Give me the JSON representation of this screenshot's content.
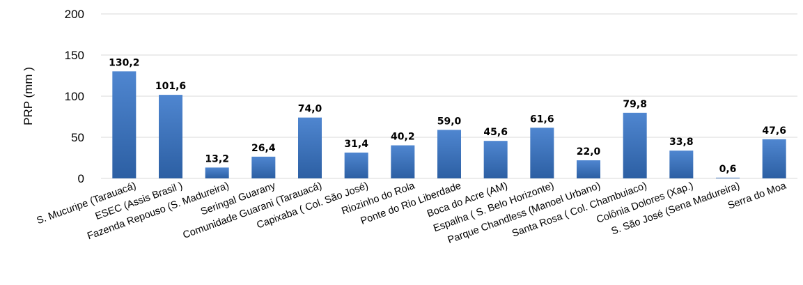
{
  "chart_data": {
    "type": "bar",
    "title": "",
    "xlabel": "",
    "ylabel": "PRP (mm )",
    "ylim": [
      0,
      200
    ],
    "yticks": [
      0,
      50,
      100,
      150,
      200
    ],
    "grid": true,
    "legend": "none",
    "bar_color_top": "#4f86d0",
    "bar_color_bottom": "#2c5fa3",
    "grid_color": "#d9d9d9",
    "categories": [
      "S. Mucuripe (Tarauacá)",
      "ESEC (Assis Brasil )",
      "Fazenda Repouso (S. Madureira)",
      "Seringal Guarany",
      "Comunidade Guarani (Tarauacá)",
      "Capixaba ( Col. São José)",
      "Riozinho do Rola",
      "Ponte do Rio Liberdade",
      "Boca do Acre (AM)",
      "Espalha ( S. Belo Horizonte)",
      "Parque Chandless (Manoel Urbano)",
      "Santa Rosa ( Col. Chambuiaco)",
      "Colônia Dolores (Xap.)",
      "S. São José (Sena Madureira)",
      "Serra do Moa"
    ],
    "values": [
      130.2,
      101.6,
      13.2,
      26.4,
      74.0,
      31.4,
      40.2,
      59.0,
      45.6,
      61.6,
      22.0,
      79.8,
      33.8,
      0.6,
      47.6
    ],
    "value_labels": [
      "130,2",
      "101,6",
      "13,2",
      "26,4",
      "74,0",
      "31,4",
      "40,2",
      "59,0",
      "45,6",
      "61,6",
      "22,0",
      "79,8",
      "33,8",
      "0,6",
      "47,6"
    ]
  }
}
